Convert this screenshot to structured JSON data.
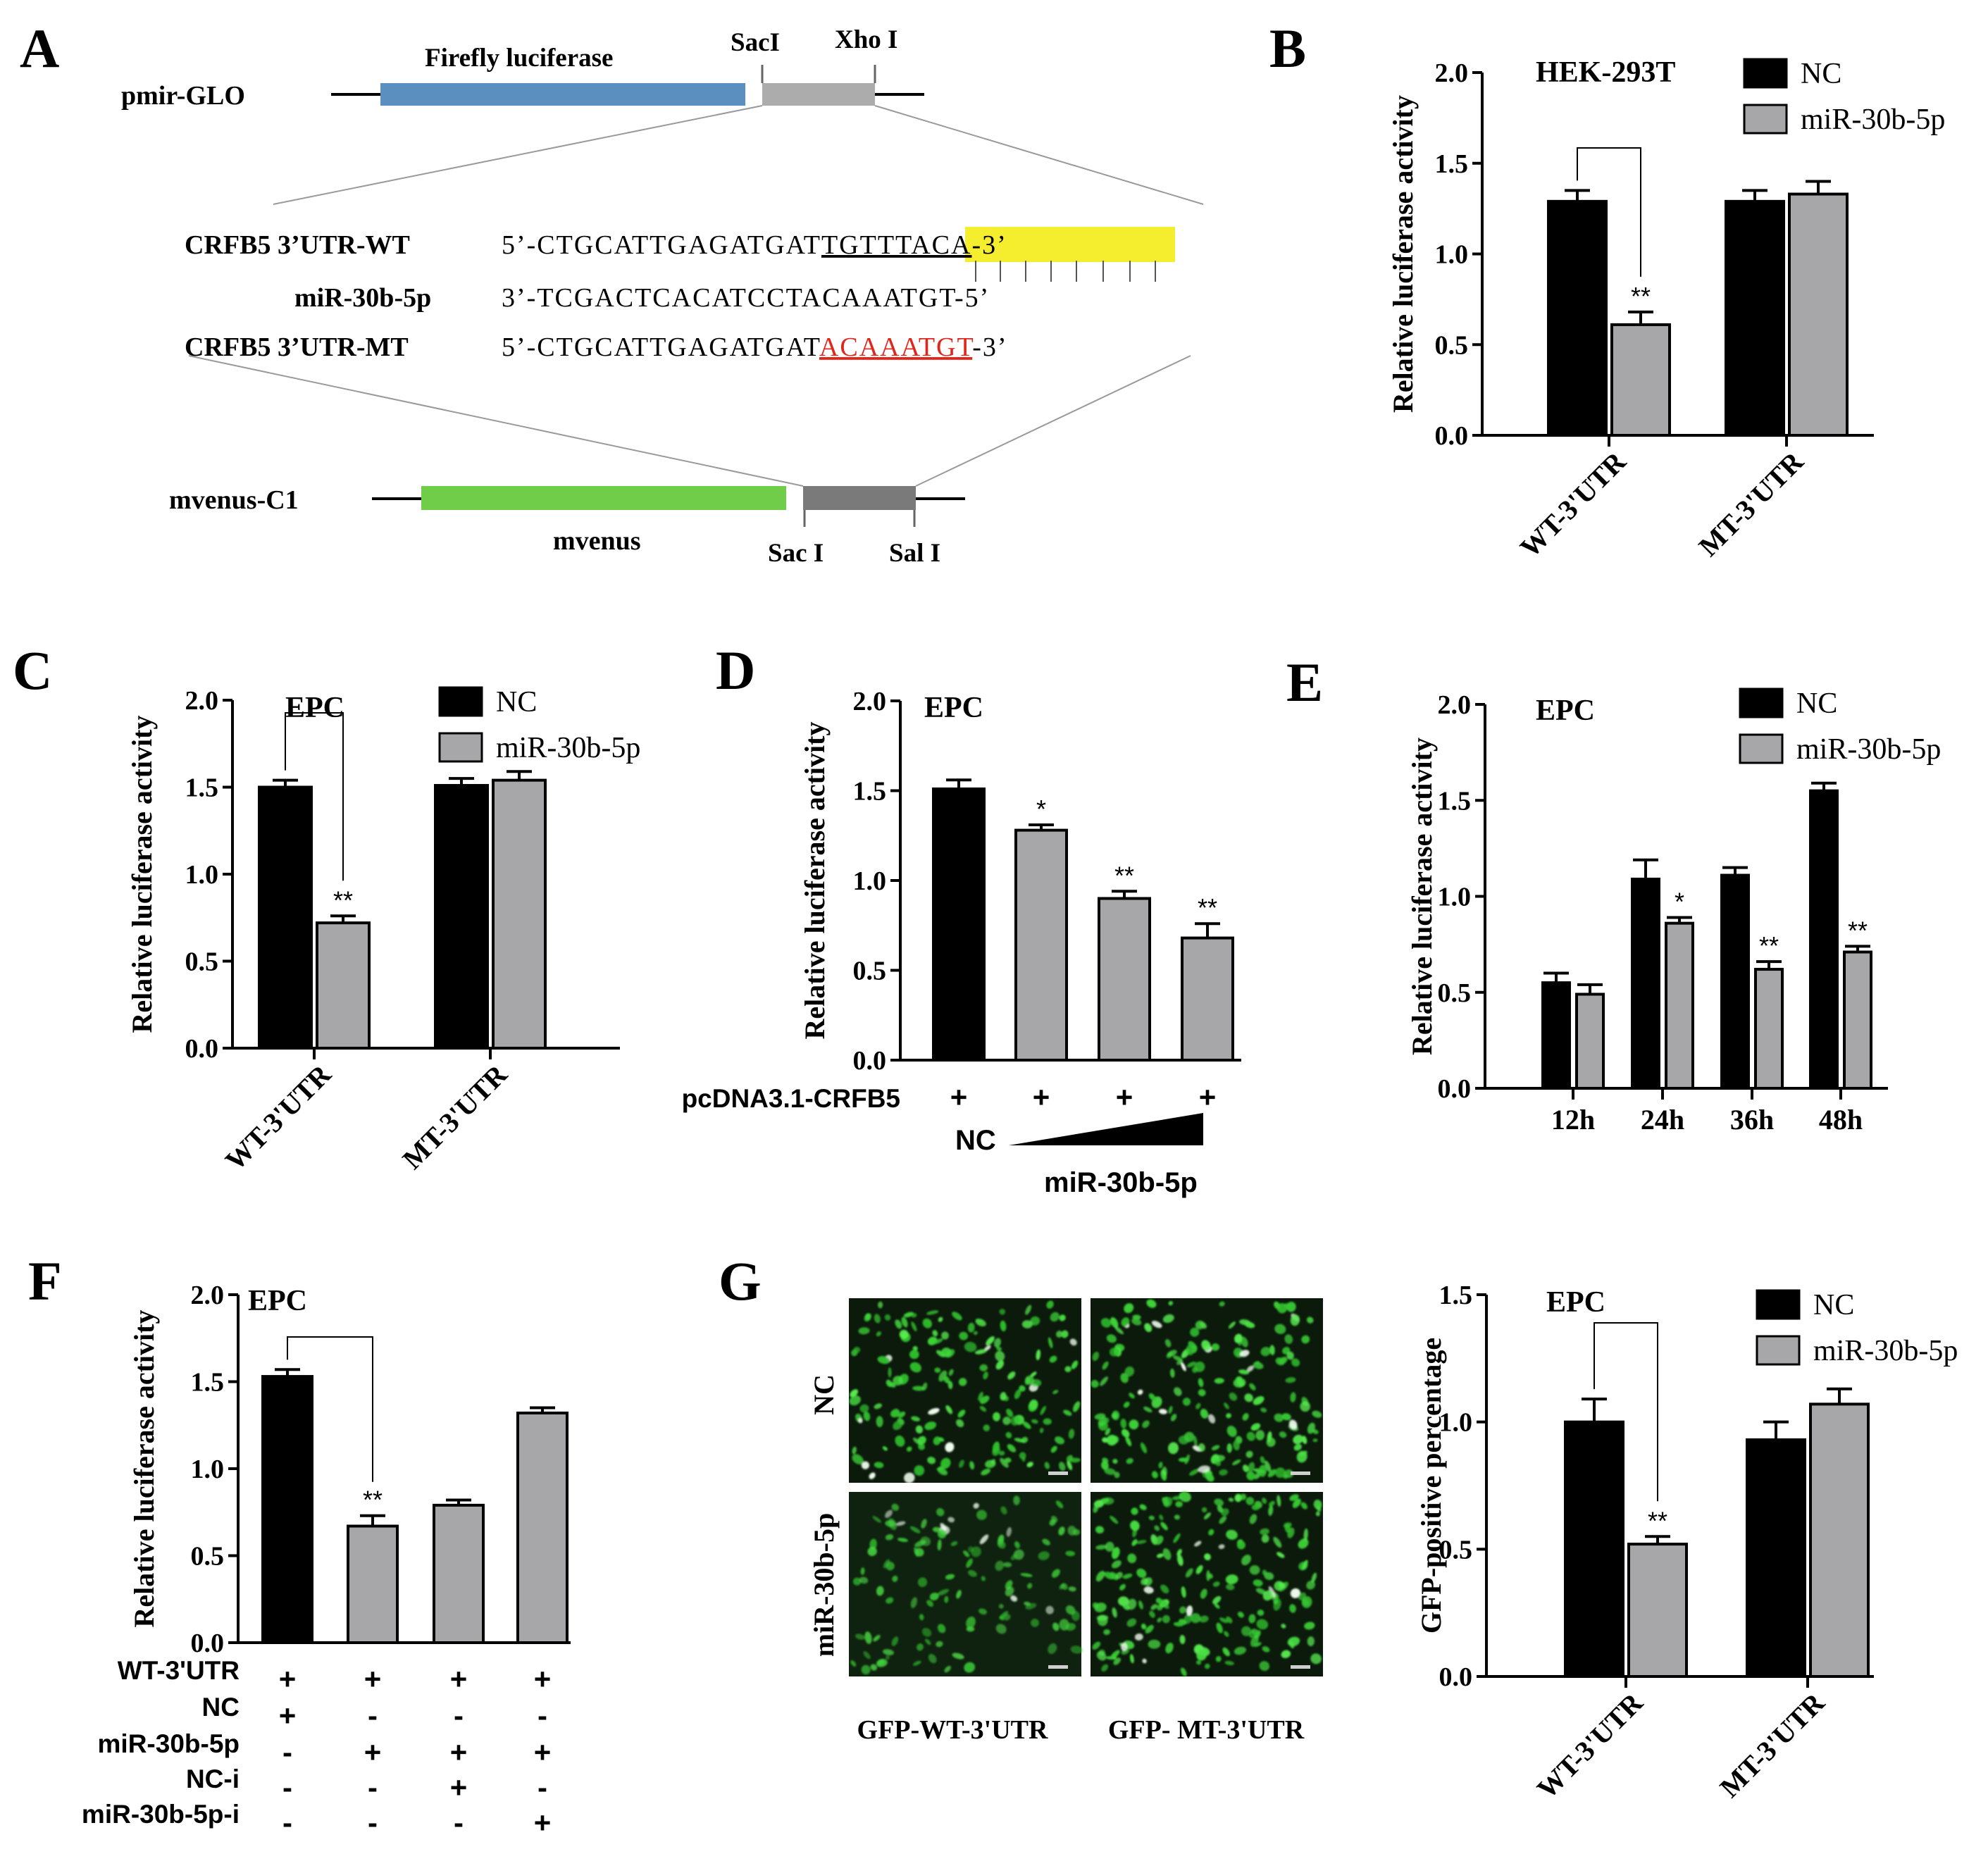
{
  "panel_letters": [
    "A",
    "B",
    "C",
    "D",
    "E",
    "F",
    "G"
  ],
  "schematic": {
    "pmir_label": "pmir-GLO",
    "firefly_label": "Firefly luciferase",
    "sacI_top": "SacI",
    "xhoI": "Xho I",
    "seq_rows": [
      {
        "name": "CRFB5 3’UTR-WT",
        "prefix": "5’-CTGCATTGAGATGAT",
        "site": "TGTTTACA",
        "suffix": "-3’"
      },
      {
        "name": "miR-30b-5p",
        "prefix": "3’-TCGACTCACATCCTACAAATGT-5’",
        "site": "",
        "suffix": ""
      },
      {
        "name": "CRFB5 3’UTR-MT",
        "prefix": "5’-CTGCATTGAGATGAT",
        "site": "ACAAATGT",
        "suffix": "-3’"
      }
    ],
    "mvenus_c1_label": "mvenus-C1",
    "mvenus_label": "mvenus",
    "sacI_bottom": "Sac I",
    "salI": "Sal I",
    "colors": {
      "firefly": "#5b8fc0",
      "insert_top": "#acacac",
      "mvenus": "#6fcd4a",
      "insert_bottom": "#7a7a7a",
      "highlight": "#f5ee2e",
      "mutant": "#e0261b"
    }
  },
  "chart_data": [
    {
      "panel": "B",
      "type": "bar",
      "title": "HEK-293T",
      "ylabel": "Relative luciferase activity",
      "ylim": [
        0,
        2.0
      ],
      "yticks": [
        "0.0",
        "0.5",
        "1.0",
        "1.5",
        "2.0"
      ],
      "categories": [
        "WT-3'UTR",
        "MT-3'UTR"
      ],
      "series": [
        {
          "name": "NC",
          "values": [
            1.29,
            1.29
          ],
          "errors": [
            0.06,
            0.06
          ]
        },
        {
          "name": "miR-30b-5p",
          "values": [
            0.61,
            1.33
          ],
          "errors": [
            0.07,
            0.07
          ]
        }
      ],
      "significance": [
        {
          "label": "**",
          "category": 0,
          "series": 1
        }
      ],
      "bracket": true,
      "legend": "top-right"
    },
    {
      "panel": "C",
      "type": "bar",
      "title": "EPC",
      "ylabel": "Relative luciferase activity",
      "ylim": [
        0,
        2.0
      ],
      "yticks": [
        "0.0",
        "0.5",
        "1.0",
        "1.5",
        "2.0"
      ],
      "categories": [
        "WT-3'UTR",
        "MT-3'UTR"
      ],
      "series": [
        {
          "name": "NC",
          "values": [
            1.5,
            1.51
          ],
          "errors": [
            0.04,
            0.04
          ]
        },
        {
          "name": "miR-30b-5p",
          "values": [
            0.72,
            1.54
          ],
          "errors": [
            0.04,
            0.05
          ]
        }
      ],
      "significance": [
        {
          "label": "**",
          "category": 0,
          "series": 1
        }
      ],
      "bracket": true,
      "legend": "top-right"
    },
    {
      "panel": "D",
      "type": "bar",
      "title": "EPC",
      "ylabel": "Relative luciferase activity",
      "ylim": [
        0,
        2.0
      ],
      "yticks": [
        "0.0",
        "0.5",
        "1.0",
        "1.5",
        "2.0"
      ],
      "bars": [
        {
          "value": 1.51,
          "error": 0.05,
          "color": "black",
          "sig": ""
        },
        {
          "value": 1.28,
          "error": 0.03,
          "color": "gray",
          "sig": "*"
        },
        {
          "value": 0.9,
          "error": 0.04,
          "color": "gray",
          "sig": "**"
        },
        {
          "value": 0.68,
          "error": 0.08,
          "color": "gray",
          "sig": "**"
        }
      ],
      "row_label": "pcDNA3.1-CRFB5",
      "row_marks": [
        "+",
        "+",
        "+",
        "+"
      ],
      "nc_label": "NC",
      "gradient_label": "miR-30b-5p"
    },
    {
      "panel": "E",
      "type": "bar",
      "title": "EPC",
      "ylabel": "Relative luciferase activity",
      "ylim": [
        0,
        2.0
      ],
      "yticks": [
        "0.0",
        "0.5",
        "1.0",
        "1.5",
        "2.0"
      ],
      "categories": [
        "12h",
        "24h",
        "36h",
        "48h"
      ],
      "series": [
        {
          "name": "NC",
          "values": [
            0.55,
            1.09,
            1.11,
            1.55
          ],
          "errors": [
            0.05,
            0.1,
            0.04,
            0.04
          ]
        },
        {
          "name": "miR-30b-5p",
          "values": [
            0.49,
            0.86,
            0.62,
            0.71
          ],
          "errors": [
            0.05,
            0.03,
            0.04,
            0.03
          ]
        }
      ],
      "significance": [
        {
          "label": "*",
          "category": 1,
          "series": 1
        },
        {
          "label": "**",
          "category": 2,
          "series": 1
        },
        {
          "label": "**",
          "category": 3,
          "series": 1
        }
      ],
      "legend": "top-right"
    },
    {
      "panel": "F",
      "type": "bar",
      "title": "EPC",
      "ylabel": "Relative luciferase activity",
      "ylim": [
        0,
        2.0
      ],
      "yticks": [
        "0.0",
        "0.5",
        "1.0",
        "1.5",
        "2.0"
      ],
      "bars": [
        {
          "value": 1.53,
          "error": 0.04,
          "color": "black",
          "sig": ""
        },
        {
          "value": 0.67,
          "error": 0.06,
          "color": "gray",
          "sig": "**"
        },
        {
          "value": 0.79,
          "error": 0.03,
          "color": "gray",
          "sig": ""
        },
        {
          "value": 1.32,
          "error": 0.03,
          "color": "gray",
          "sig": ""
        }
      ],
      "bracket_bars": [
        0,
        1
      ],
      "condition_table": [
        {
          "label": "WT-3'UTR",
          "marks": [
            "+",
            "+",
            "+",
            "+"
          ]
        },
        {
          "label": "NC",
          "marks": [
            "+",
            "-",
            "-",
            "-"
          ]
        },
        {
          "label": "miR-30b-5p",
          "marks": [
            "-",
            "+",
            "+",
            "+"
          ]
        },
        {
          "label": "NC-i",
          "marks": [
            "-",
            "-",
            "+",
            "-"
          ]
        },
        {
          "label": "miR-30b-5p-i",
          "marks": [
            "-",
            "-",
            "-",
            "+"
          ]
        }
      ]
    },
    {
      "panel": "G",
      "type": "bar",
      "title": "EPC",
      "ylabel": "GFP-positive percentage",
      "ylim": [
        0,
        1.5
      ],
      "yticks": [
        "0.0",
        "0.5",
        "1.0",
        "1.5"
      ],
      "categories": [
        "WT-3'UTR",
        "MT-3'UTR"
      ],
      "series": [
        {
          "name": "NC",
          "values": [
            1.0,
            0.93
          ],
          "errors": [
            0.09,
            0.07
          ]
        },
        {
          "name": "miR-30b-5p",
          "values": [
            0.52,
            1.07
          ],
          "errors": [
            0.03,
            0.06
          ]
        }
      ],
      "significance": [
        {
          "label": "**",
          "category": 0,
          "series": 1
        }
      ],
      "bracket": true,
      "legend": "top-right"
    }
  ],
  "micrographs": {
    "row_labels": [
      "NC",
      "miR-30b-5p"
    ],
    "col_labels": [
      "GFP-WT-3'UTR",
      "GFP- MT-3'UTR"
    ],
    "colors": {
      "cell": "#3fd83a",
      "background": "#0c1a0c"
    }
  }
}
